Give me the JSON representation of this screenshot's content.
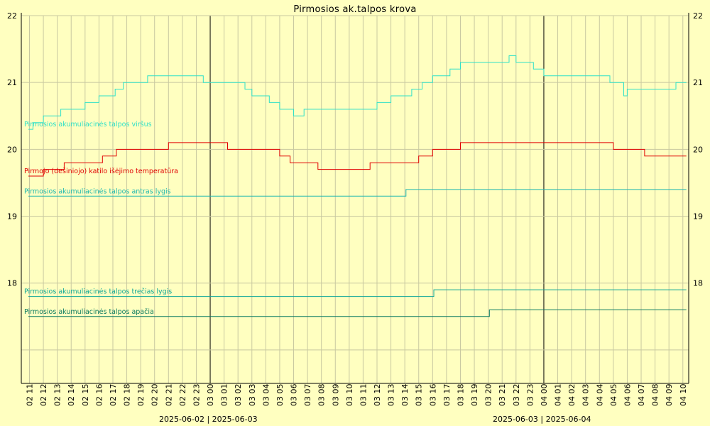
{
  "chart_data": {
    "type": "line",
    "title": "Pirmosios ak.talpos krova",
    "ylim": [
      16.5,
      22
    ],
    "yticks": [
      18,
      19,
      20,
      21,
      22
    ],
    "grid": true,
    "hour_ticks": [
      "02 11",
      "02 12",
      "02 13",
      "02 14",
      "02 15",
      "02 16",
      "02 17",
      "02 18",
      "02 19",
      "02 20",
      "02 21",
      "02 22",
      "02 23",
      "03 00",
      "03 01",
      "03 02",
      "03 03",
      "03 04",
      "03 05",
      "03 06",
      "03 07",
      "03 08",
      "03 09",
      "03 10",
      "03 11",
      "03 12",
      "03 13",
      "03 14",
      "03 15",
      "03 16",
      "03 17",
      "03 18",
      "03 19",
      "03 20",
      "03 21",
      "03 22",
      "03 23",
      "04 00",
      "04 01",
      "04 02",
      "04 03",
      "04 04",
      "04 05",
      "04 06",
      "04 07",
      "04 08",
      "04 09",
      "04 10"
    ],
    "day_boundaries": [
      {
        "tick": "03 00",
        "label_left": "2025-06-02",
        "label_right": "2025-06-03"
      },
      {
        "tick": "04 00",
        "label_left": "2025-06-03",
        "label_right": "2025-06-04"
      }
    ],
    "x_start": "02 10:55",
    "x_end": "04 10:15",
    "series": [
      {
        "name": "Pirmosios akumuliacinės talpos viršus",
        "color": "#2ee0c8",
        "points": [
          [
            "02 10:55",
            20.3
          ],
          [
            "02 11:15",
            20.4
          ],
          [
            "02 12:00",
            20.5
          ],
          [
            "02 13:15",
            20.6
          ],
          [
            "02 15:00",
            20.7
          ],
          [
            "02 16:00",
            20.8
          ],
          [
            "02 17:10",
            20.9
          ],
          [
            "02 17:45",
            21.0
          ],
          [
            "02 19:30",
            21.1
          ],
          [
            "02 23:30",
            21.0
          ],
          [
            "03 02:30",
            20.9
          ],
          [
            "03 03:00",
            20.8
          ],
          [
            "03 04:15",
            20.7
          ],
          [
            "03 05:00",
            20.6
          ],
          [
            "03 06:00",
            20.5
          ],
          [
            "03 06:45",
            20.6
          ],
          [
            "03 12:00",
            20.7
          ],
          [
            "03 13:00",
            20.8
          ],
          [
            "03 14:30",
            20.9
          ],
          [
            "03 15:15",
            21.0
          ],
          [
            "03 16:00",
            21.1
          ],
          [
            "03 17:15",
            21.2
          ],
          [
            "03 18:00",
            21.3
          ],
          [
            "03 20:30",
            21.3
          ],
          [
            "03 21:30",
            21.4
          ],
          [
            "03 22:00",
            21.3
          ],
          [
            "03 23:15",
            21.2
          ],
          [
            "04 00:00",
            21.1
          ],
          [
            "04 04:00",
            21.1
          ],
          [
            "04 04:45",
            21.0
          ],
          [
            "04 05:45",
            20.8
          ],
          [
            "04 06:00",
            20.9
          ],
          [
            "04 09:30",
            21.0
          ],
          [
            "04 10:15",
            21.0
          ]
        ]
      },
      {
        "name": "Pirmojo (dešiniojo) katilo išėjimo temperatūra",
        "color": "#e00000",
        "points": [
          [
            "02 10:55",
            19.6
          ],
          [
            "02 12:00",
            19.7
          ],
          [
            "02 13:30",
            19.8
          ],
          [
            "02 16:15",
            19.9
          ],
          [
            "02 17:15",
            20.0
          ],
          [
            "02 21:00",
            20.1
          ],
          [
            "03 01:15",
            20.0
          ],
          [
            "03 05:00",
            19.9
          ],
          [
            "03 05:45",
            19.8
          ],
          [
            "03 07:45",
            19.7
          ],
          [
            "03 11:30",
            19.8
          ],
          [
            "03 15:00",
            19.9
          ],
          [
            "03 16:00",
            20.0
          ],
          [
            "03 18:00",
            20.1
          ],
          [
            "04 05:00",
            20.0
          ],
          [
            "04 07:15",
            19.9
          ],
          [
            "04 10:15",
            19.9
          ]
        ]
      },
      {
        "name": "Pirmosios akumuliacinės talpos antras lygis",
        "color": "#20b8b0",
        "points": [
          [
            "02 10:55",
            19.3
          ],
          [
            "03 14:00",
            19.3
          ],
          [
            "03 14:05",
            19.4
          ],
          [
            "04 10:15",
            19.4
          ]
        ]
      },
      {
        "name": "Pirmosios akumuliacinės talpos trečias lygis",
        "color": "#10a898",
        "points": [
          [
            "02 10:55",
            17.8
          ],
          [
            "03 16:00",
            17.8
          ],
          [
            "03 16:05",
            17.9
          ],
          [
            "04 10:15",
            17.9
          ]
        ]
      },
      {
        "name": "Pirmosios akumuliacinės talpos apačia",
        "color": "#0a7a60",
        "points": [
          [
            "02 10:55",
            17.5
          ],
          [
            "03 20:00",
            17.5
          ],
          [
            "03 20:05",
            17.6
          ],
          [
            "04 10:15",
            17.6
          ]
        ]
      }
    ]
  }
}
